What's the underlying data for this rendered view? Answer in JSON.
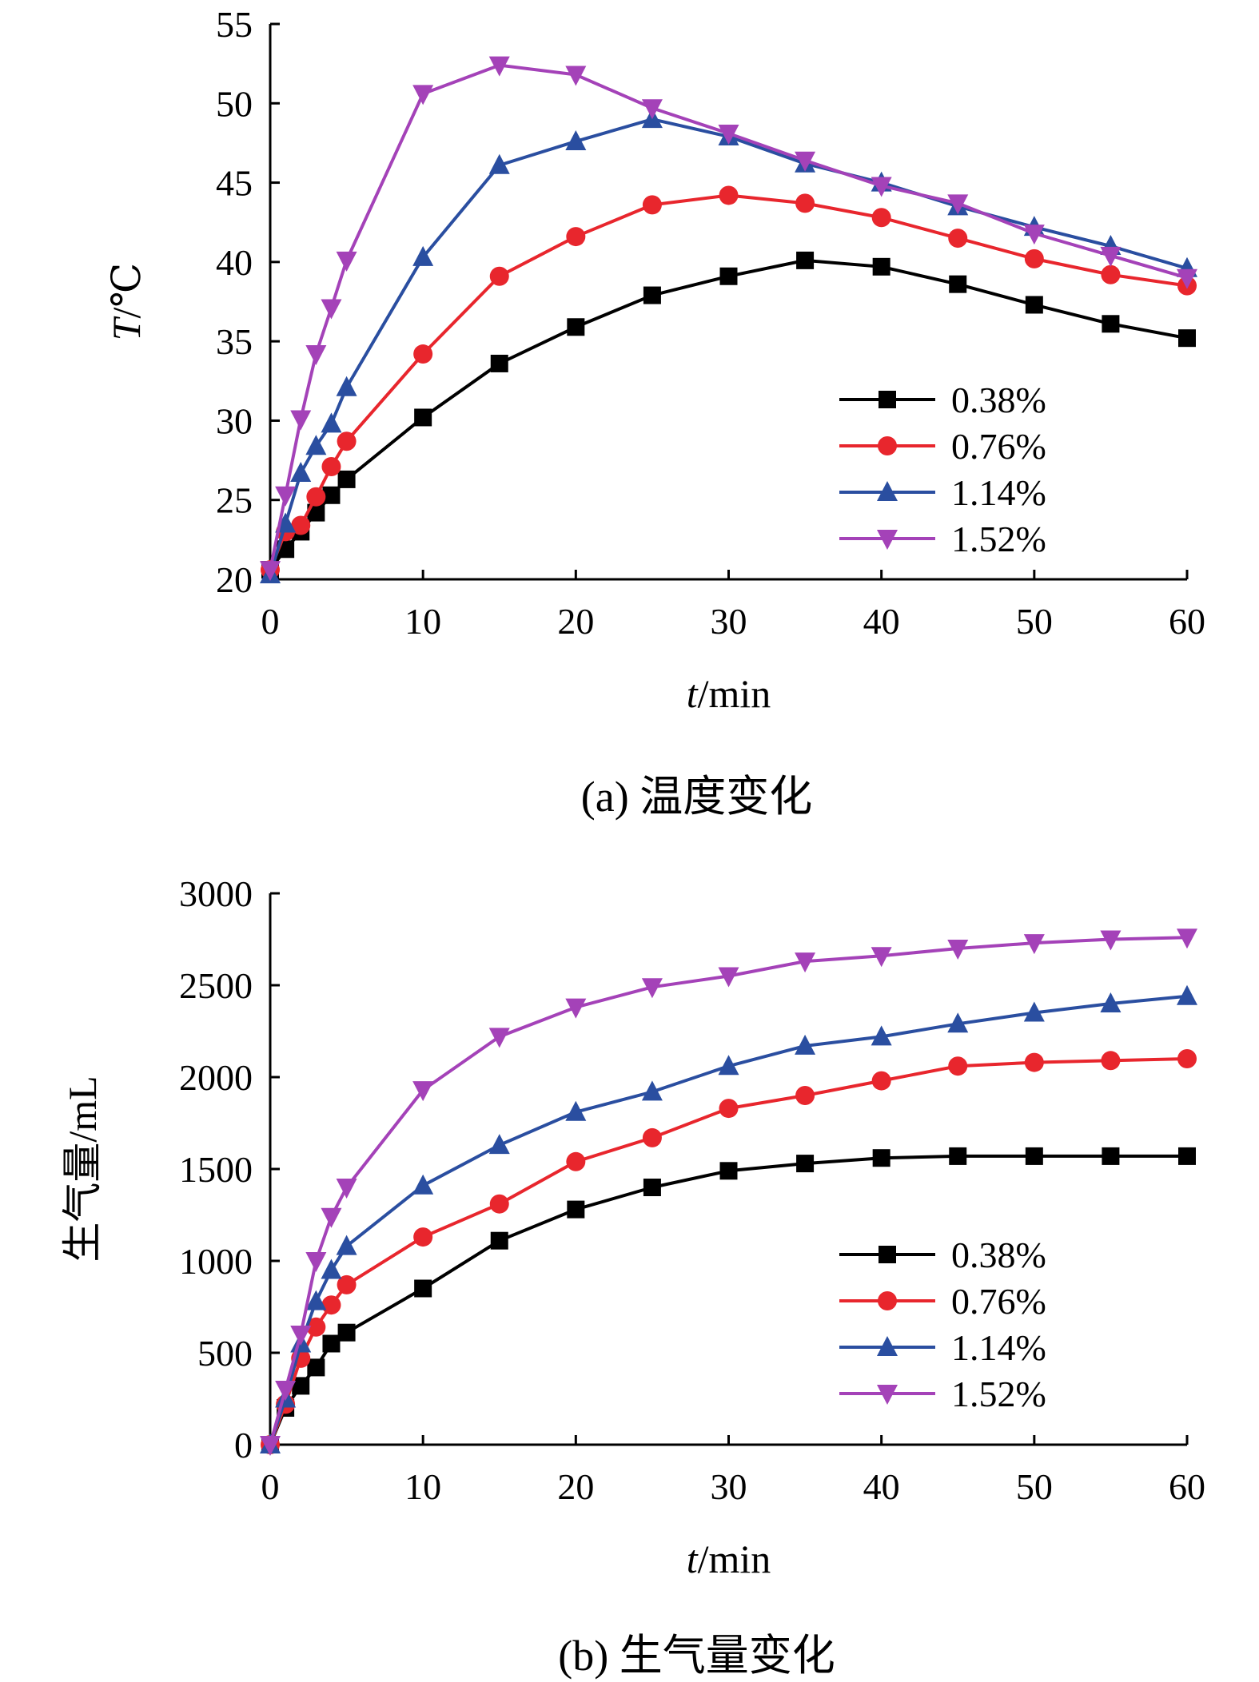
{
  "chart_data": [
    {
      "type": "line",
      "caption": "(a) 温度变化",
      "xlabel": {
        "italic": "t",
        "rest": "/min"
      },
      "ylabel": {
        "italic": "T",
        "rest": "/℃"
      },
      "xlim": [
        0,
        60
      ],
      "ylim": [
        20,
        55
      ],
      "xticks": [
        0,
        10,
        20,
        30,
        40,
        50,
        60
      ],
      "yticks": [
        20,
        25,
        30,
        35,
        40,
        45,
        50,
        55
      ],
      "legend_position": "bottom-right",
      "grid": false,
      "x": [
        0,
        1,
        2,
        3,
        4,
        5,
        10,
        15,
        20,
        25,
        30,
        35,
        40,
        45,
        50,
        55,
        60
      ],
      "series": [
        {
          "name": "0.38%",
          "color": "#000000",
          "marker": "square",
          "values": [
            20.6,
            21.9,
            23.0,
            24.2,
            25.3,
            26.3,
            30.2,
            33.6,
            35.9,
            37.9,
            39.1,
            40.1,
            39.7,
            38.6,
            37.3,
            36.1,
            35.2
          ]
        },
        {
          "name": "0.76%",
          "color": "#e8262d",
          "marker": "circle",
          "values": [
            20.6,
            23.0,
            23.4,
            25.2,
            27.1,
            28.7,
            34.2,
            39.1,
            41.6,
            43.6,
            44.2,
            43.7,
            42.8,
            41.5,
            40.2,
            39.2,
            38.5
          ]
        },
        {
          "name": "1.14%",
          "color": "#2a4ea0",
          "marker": "triangle-up",
          "values": [
            20.3,
            23.5,
            26.7,
            28.4,
            29.8,
            32.1,
            40.3,
            46.1,
            47.6,
            49.0,
            47.9,
            46.2,
            45.0,
            43.5,
            42.2,
            41.0,
            39.6
          ]
        },
        {
          "name": "1.52%",
          "color": "#a442b8",
          "marker": "triangle-down",
          "values": [
            20.6,
            25.3,
            30.1,
            34.2,
            37.1,
            40.1,
            50.6,
            52.4,
            51.8,
            49.7,
            48.1,
            46.4,
            44.8,
            43.7,
            41.8,
            40.4,
            39.0
          ]
        }
      ]
    },
    {
      "type": "line",
      "caption": "(b) 生气量变化",
      "xlabel": {
        "italic": "t",
        "rest": "/min"
      },
      "ylabel": {
        "italic": "",
        "rest": "生气量/mL"
      },
      "xlim": [
        0,
        60
      ],
      "ylim": [
        0,
        3000
      ],
      "xticks": [
        0,
        10,
        20,
        30,
        40,
        50,
        60
      ],
      "yticks": [
        0,
        500,
        1000,
        1500,
        2000,
        2500,
        3000
      ],
      "legend_position": "bottom-right",
      "grid": false,
      "x": [
        0,
        1,
        2,
        3,
        4,
        5,
        10,
        15,
        20,
        25,
        30,
        35,
        40,
        45,
        50,
        55,
        60
      ],
      "series": [
        {
          "name": "0.38%",
          "color": "#000000",
          "marker": "square",
          "values": [
            0,
            200,
            320,
            420,
            550,
            610,
            850,
            1110,
            1280,
            1400,
            1490,
            1530,
            1560,
            1570,
            1570,
            1570,
            1570
          ]
        },
        {
          "name": "0.76%",
          "color": "#e8262d",
          "marker": "circle",
          "values": [
            0,
            220,
            470,
            640,
            760,
            870,
            1130,
            1310,
            1540,
            1670,
            1830,
            1900,
            1980,
            2060,
            2080,
            2090,
            2100
          ]
        },
        {
          "name": "1.14%",
          "color": "#2a4ea0",
          "marker": "triangle-up",
          "values": [
            0,
            250,
            550,
            780,
            950,
            1080,
            1410,
            1630,
            1810,
            1920,
            2060,
            2170,
            2220,
            2290,
            2350,
            2400,
            2440
          ]
        },
        {
          "name": "1.52%",
          "color": "#a442b8",
          "marker": "triangle-down",
          "values": [
            0,
            300,
            600,
            1000,
            1240,
            1400,
            1930,
            2220,
            2380,
            2490,
            2550,
            2630,
            2660,
            2700,
            2730,
            2750,
            2760
          ]
        }
      ]
    }
  ]
}
